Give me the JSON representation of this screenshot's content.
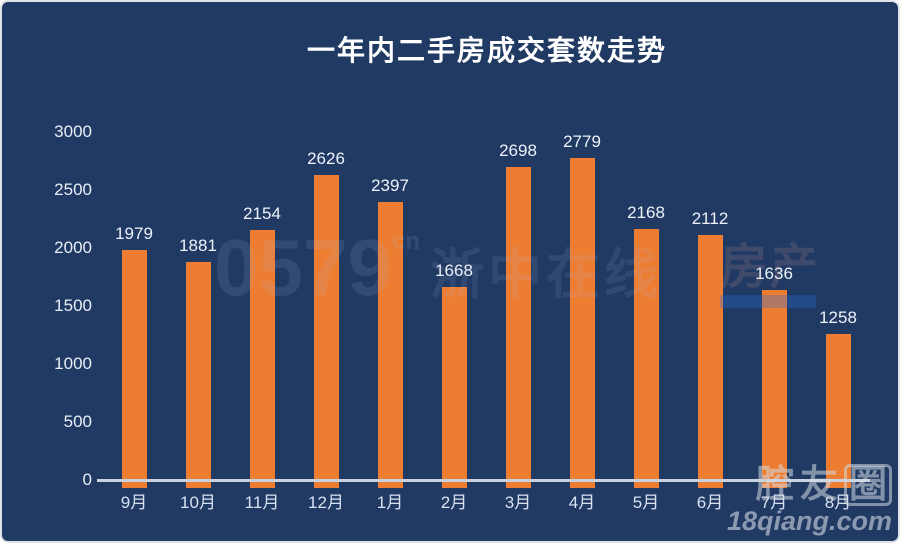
{
  "title": "一年内二手房成交套数走势",
  "chart_data": {
    "type": "bar",
    "categories": [
      "9月",
      "10月",
      "11月",
      "12月",
      "1月",
      "2月",
      "3月",
      "4月",
      "5月",
      "6月",
      "7月",
      "8月"
    ],
    "values": [
      1979,
      1881,
      2154,
      2626,
      2397,
      1668,
      2698,
      2779,
      2168,
      2112,
      1636,
      1258
    ],
    "title": "一年内二手房成交套数走势",
    "xlabel": "",
    "ylabel": "",
    "ylim": [
      0,
      3000
    ],
    "yticks": [
      0,
      500,
      1000,
      1500,
      2000,
      2500,
      3000
    ],
    "grid": false,
    "legend": "none",
    "bar_color": "#ED7D31",
    "background_color": "#203A64",
    "title_color": "#FFFFFF",
    "label_color": "#EDF1F8",
    "axis_line_color": "#C9D3E0"
  },
  "watermarks": {
    "center": {
      "number": "0579",
      "sup": "cn",
      "site": "浙中在线",
      "estate": "房产"
    },
    "corner": {
      "logo_part1": "腔友",
      "logo_part2": "圈",
      "url": "18qiang.com"
    }
  }
}
